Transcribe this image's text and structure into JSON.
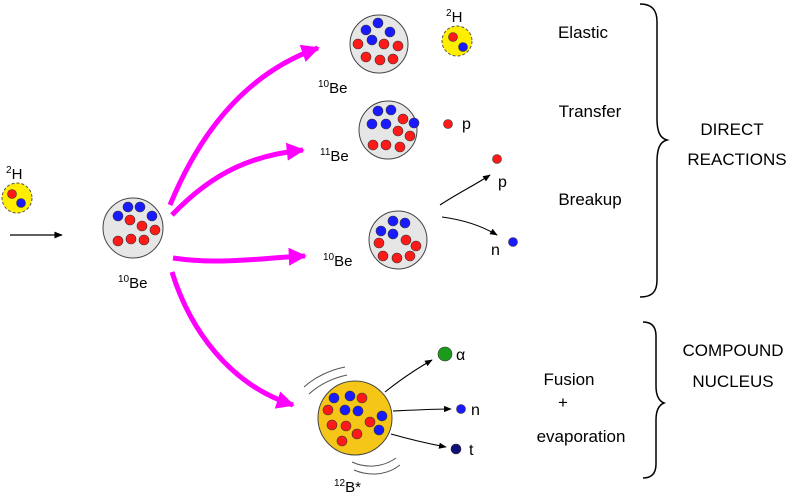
{
  "colors": {
    "arrow_magenta": "#ff00ff",
    "proton_red": "#ff1a1a",
    "neutron_blue": "#1a1aff",
    "nucleus_grey": "#e6e6e6",
    "projectile_yellow": "#ffee00",
    "compound_gold": "#f5c518",
    "alpha_green": "#1c9a1c",
    "triton_navy": "#10107a"
  },
  "projectile": {
    "mass": "2",
    "symbol": "H"
  },
  "target": {
    "mass": "10",
    "symbol": "Be"
  },
  "products": {
    "elastic_nucleus": {
      "mass": "10",
      "symbol": "Be"
    },
    "elastic_ejectile": {
      "mass": "2",
      "symbol": "H"
    },
    "transfer_nucleus": {
      "mass": "11",
      "symbol": "Be"
    },
    "transfer_ejectile": "p",
    "breakup_nucleus": {
      "mass": "10",
      "symbol": "Be"
    },
    "breakup_p": "p",
    "breakup_n": "n",
    "compound": {
      "mass": "12",
      "symbol": "B*"
    },
    "evap_alpha": "α",
    "evap_n": "n",
    "evap_t": "t"
  },
  "channels": {
    "elastic": "Elastic",
    "transfer": "Transfer",
    "breakup": "Breakup",
    "fusion_line1": "Fusion",
    "fusion_plus": "+",
    "fusion_line2": "evaporation"
  },
  "groups": {
    "direct_line1": "DIRECT",
    "direct_line2": "REACTIONS",
    "compound_line1": "COMPOUND",
    "compound_line2": "NUCLEUS"
  }
}
